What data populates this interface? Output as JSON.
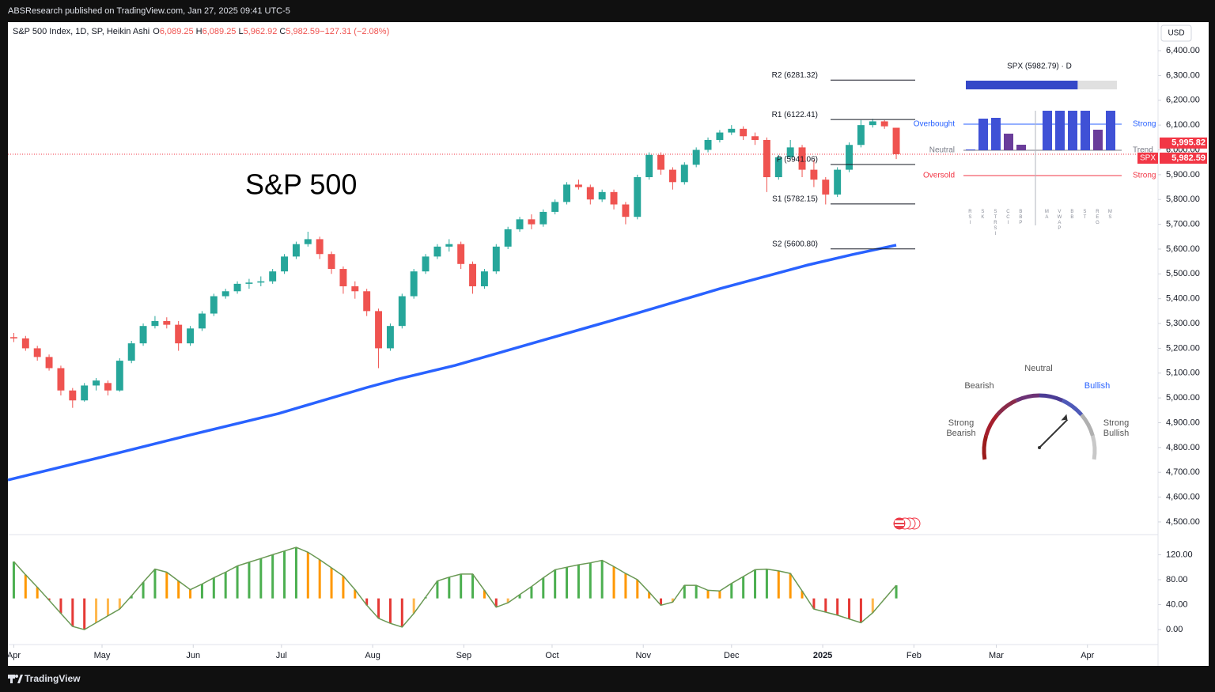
{
  "header": {
    "publisher": "ABSResearch published on TradingView.com, Jan 27, 2025 09:41 UTC-5"
  },
  "chart_data": {
    "type": "candlestick",
    "title": "S&P 500 Index, 1D, SP, Heikin Ashi",
    "legend_values": [
      {
        "key": "O",
        "value": "6,089.25"
      },
      {
        "key": "H",
        "value": "6,089.25"
      },
      {
        "key": "L",
        "value": "5,962.92"
      },
      {
        "key": "C",
        "value": "5,982.59"
      },
      {
        "key": "",
        "value": "−127.31 (−2.08%)"
      }
    ],
    "annotation": "S&P 500",
    "currency": "USD",
    "x": [
      0,
      4,
      8,
      12,
      16,
      20,
      24,
      28,
      32,
      36,
      40,
      44,
      48,
      52,
      56,
      60,
      64,
      68,
      72,
      76,
      80,
      84,
      88,
      92,
      96,
      100,
      104,
      108,
      112,
      116,
      120,
      124,
      128,
      132,
      136,
      140,
      144,
      148,
      152,
      156,
      160,
      164,
      168,
      172,
      176,
      180,
      184,
      188,
      192,
      196,
      200,
      204,
      208,
      212,
      216,
      220,
      224,
      228,
      232,
      236,
      240,
      244,
      248,
      252,
      256,
      260,
      264,
      268,
      272,
      276,
      280,
      284,
      288,
      292,
      296,
      300
    ],
    "open": [
      5245,
      5240,
      5200,
      5165,
      5120,
      5030,
      4990,
      5050,
      5060,
      5030,
      5150,
      5220,
      5290,
      5310,
      5295,
      5220,
      5280,
      5340,
      5410,
      5430,
      5460,
      5465,
      5470,
      5510,
      5570,
      5620,
      5640,
      5580,
      5520,
      5450,
      5430,
      5350,
      5200,
      5290,
      5410,
      5510,
      5570,
      5610,
      5620,
      5540,
      5450,
      5510,
      5610,
      5680,
      5720,
      5700,
      5750,
      5790,
      5860,
      5850,
      5800,
      5830,
      5780,
      5730,
      5890,
      5980,
      5920,
      5870,
      5940,
      6000,
      6040,
      6070,
      6085,
      6055,
      6040,
      5890,
      5970,
      6010,
      5920,
      5880,
      5820,
      5920,
      6020,
      6100,
      6115,
      6089.25
    ],
    "high": [
      5262,
      5250,
      5210,
      5175,
      5130,
      5040,
      5060,
      5080,
      5070,
      5160,
      5230,
      5300,
      5330,
      5325,
      5310,
      5290,
      5350,
      5420,
      5440,
      5470,
      5480,
      5490,
      5520,
      5580,
      5630,
      5670,
      5650,
      5590,
      5530,
      5470,
      5440,
      5360,
      5300,
      5420,
      5520,
      5580,
      5620,
      5640,
      5630,
      5550,
      5520,
      5620,
      5690,
      5730,
      5740,
      5760,
      5800,
      5870,
      5880,
      5860,
      5840,
      5840,
      5790,
      5900,
      5990,
      5990,
      5930,
      5950,
      6010,
      6050,
      6080,
      6100,
      6095,
      6070,
      6050,
      5980,
      6040,
      6020,
      5960,
      5890,
      5930,
      6030,
      6120,
      6125,
      6120,
      6089.25
    ],
    "low": [
      5225,
      5190,
      5150,
      5110,
      5010,
      4960,
      4985,
      5030,
      5010,
      5025,
      5140,
      5210,
      5280,
      5280,
      5190,
      5210,
      5270,
      5330,
      5400,
      5420,
      5440,
      5450,
      5460,
      5500,
      5560,
      5610,
      5560,
      5500,
      5420,
      5400,
      5330,
      5120,
      5190,
      5280,
      5400,
      5500,
      5560,
      5590,
      5520,
      5420,
      5440,
      5500,
      5600,
      5670,
      5680,
      5690,
      5740,
      5780,
      5840,
      5780,
      5790,
      5760,
      5700,
      5720,
      5880,
      5900,
      5840,
      5860,
      5930,
      5990,
      6030,
      6060,
      6040,
      6020,
      5830,
      5880,
      5960,
      5890,
      5850,
      5780,
      5810,
      5910,
      6010,
      6090,
      6085,
      5962.92
    ],
    "close": [
      5240,
      5200,
      5165,
      5120,
      5030,
      4990,
      5050,
      5070,
      5030,
      5150,
      5220,
      5290,
      5310,
      5295,
      5220,
      5280,
      5340,
      5410,
      5430,
      5460,
      5465,
      5470,
      5510,
      5570,
      5620,
      5640,
      5580,
      5520,
      5450,
      5430,
      5350,
      5200,
      5290,
      5410,
      5510,
      5570,
      5610,
      5620,
      5540,
      5450,
      5510,
      5610,
      5680,
      5720,
      5700,
      5750,
      5790,
      5860,
      5850,
      5800,
      5830,
      5780,
      5730,
      5890,
      5980,
      5920,
      5870,
      5940,
      6000,
      6040,
      6070,
      6085,
      6055,
      6040,
      5890,
      5970,
      6010,
      5920,
      5880,
      5820,
      5920,
      6020,
      6100,
      6115,
      6095,
      5982.59
    ],
    "up_color": "#26a69a",
    "down_color": "#ef5350",
    "xlim": [
      -2,
      389
    ],
    "xticks": [
      {
        "value": 0,
        "label": "Apr"
      },
      {
        "value": 30,
        "label": "May"
      },
      {
        "value": 61,
        "label": "Jun"
      },
      {
        "value": 91,
        "label": "Jul"
      },
      {
        "value": 122,
        "label": "Aug"
      },
      {
        "value": 153,
        "label": "Sep"
      },
      {
        "value": 183,
        "label": "Oct"
      },
      {
        "value": 214,
        "label": "Nov"
      },
      {
        "value": 244,
        "label": "Dec"
      },
      {
        "value": 275,
        "label": "2025"
      },
      {
        "value": 306,
        "label": "Feb"
      },
      {
        "value": 334,
        "label": "Mar"
      },
      {
        "value": 365,
        "label": "Apr"
      }
    ],
    "ylim": [
      4452,
      6515
    ],
    "yticks": [
      {
        "value": 4500,
        "label": "4,500.00"
      },
      {
        "value": 4600,
        "label": "4,600.00"
      },
      {
        "value": 4700,
        "label": "4,700.00"
      },
      {
        "value": 4800,
        "label": "4,800.00"
      },
      {
        "value": 4900,
        "label": "4,900.00"
      },
      {
        "value": 5000,
        "label": "5,000.00"
      },
      {
        "value": 5100,
        "label": "5,100.00"
      },
      {
        "value": 5200,
        "label": "5,200.00"
      },
      {
        "value": 5300,
        "label": "5,300.00"
      },
      {
        "value": 5400,
        "label": "5,400.00"
      },
      {
        "value": 5500,
        "label": "5,500.00"
      },
      {
        "value": 5600,
        "label": "5,600.00"
      },
      {
        "value": 5700,
        "label": "5,700.00"
      },
      {
        "value": 5800,
        "label": "5,800.00"
      },
      {
        "value": 5900,
        "label": "5,900.00"
      },
      {
        "value": 6000,
        "label": "6,000.00"
      },
      {
        "value": 6100,
        "label": "6,100.00"
      },
      {
        "value": 6200,
        "label": "6,200.00"
      },
      {
        "value": 6300,
        "label": "6,300.00"
      },
      {
        "value": 6400,
        "label": "6,400.00"
      }
    ],
    "grid": false,
    "last_price": {
      "value": 5982.59,
      "label": "5,982.59",
      "symbol": "SPX",
      "color": "#f23645"
    },
    "second_price": {
      "value": 5995.82,
      "label": "5,995.82",
      "color": "#f23645"
    },
    "moving_average": {
      "x": [
        -2,
        30,
        60,
        90,
        120,
        130,
        150,
        180,
        210,
        240,
        270,
        285,
        300
      ],
      "values": [
        4669,
        4762,
        4851,
        4937,
        5042,
        5074,
        5131,
        5233,
        5335,
        5440,
        5536,
        5578,
        5616
      ],
      "color": "#2962ff"
    },
    "pivots": [
      {
        "label": "R2 (6281.32)",
        "value": 6281.32
      },
      {
        "label": "R1 (6122.41)",
        "value": 6122.41
      },
      {
        "label": "P (5941.06)",
        "value": 5941.06
      },
      {
        "label": "S1 (5782.15)",
        "value": 5782.15
      },
      {
        "label": "S2 (5600.80)",
        "value": 5600.8
      }
    ],
    "oscillator": {
      "type": "histogram",
      "values": [
        109,
        88,
        68,
        47,
        26,
        5,
        0,
        11,
        22,
        33,
        54,
        76,
        97,
        92,
        78,
        64,
        73,
        83,
        92,
        102,
        108,
        114,
        120,
        126,
        132,
        124,
        112,
        99,
        86,
        64,
        39,
        18,
        10,
        4,
        26,
        52,
        78,
        84,
        89,
        89,
        63,
        36,
        43,
        56,
        69,
        83,
        96,
        100,
        104,
        107,
        111,
        101,
        90,
        80,
        60,
        39,
        44,
        71,
        71,
        63,
        62,
        74,
        85,
        96,
        97,
        94,
        90,
        62,
        33,
        28,
        23,
        17,
        11,
        27,
        49,
        71
      ],
      "baseline": 50,
      "ylim": [
        -24,
        151
      ],
      "yticks": [
        {
          "value": 0,
          "label": "0.00"
        },
        {
          "value": 40,
          "label": "40.00"
        },
        {
          "value": 80,
          "label": "80.00"
        },
        {
          "value": 120,
          "label": "120.00"
        }
      ],
      "colors": {
        "up_rising": "#4caf50",
        "up_falling": "#ff9800",
        "down_falling": "#e53935",
        "down_rising": "#ffb74d",
        "line": "#6a9955"
      }
    },
    "strength_panel": {
      "title": "SPX (5982.79) · D",
      "score": 74,
      "score_lim": [
        0,
        100
      ],
      "score_color": "#3548c8",
      "categories": [
        "RSI",
        "SK",
        "STRSI",
        "CCI",
        "BBP",
        "MA",
        "VWAP",
        "BB",
        "ST",
        "REG",
        "MS"
      ],
      "values": [
        2,
        80,
        82,
        42,
        14,
        100,
        100,
        100,
        100,
        52,
        100
      ],
      "colors": [
        "#3f51d6",
        "#3f51d6",
        "#3f51d6",
        "#6a3d9a",
        "#6a3d9a",
        "#3f51d6",
        "#3f51d6",
        "#3f51d6",
        "#3f51d6",
        "#6a3d9a",
        "#3f51d6"
      ],
      "ylim": [
        -100,
        100
      ],
      "levels": [
        {
          "label": "Overbought",
          "side": "Strong",
          "value": 66,
          "color": "#2962ff"
        },
        {
          "label": "Neutral",
          "side": "Trend",
          "value": 0,
          "color": "#787b86"
        },
        {
          "label": "Oversold",
          "side": "Strong",
          "value": -64,
          "color": "#f23645"
        }
      ]
    },
    "gauge": {
      "value": 75,
      "lim": [
        0,
        100
      ],
      "labels": {
        "neutral": [
          "Neutral"
        ],
        "bearish": [
          "Bearish"
        ],
        "bullish": [
          "Bullish"
        ],
        "strong_bearish": [
          "Strong",
          "Bearish"
        ],
        "strong_bullish": [
          "Strong",
          "Bullish"
        ]
      },
      "arc_colors": [
        "#9b1b1b",
        "#a51f2d",
        "#8a2b4a",
        "#6d3275",
        "#4b3c95",
        "#4f5ab8",
        "#b0b0b0",
        "#c8c8c8"
      ]
    }
  },
  "footer": {
    "brand": "TradingView"
  }
}
